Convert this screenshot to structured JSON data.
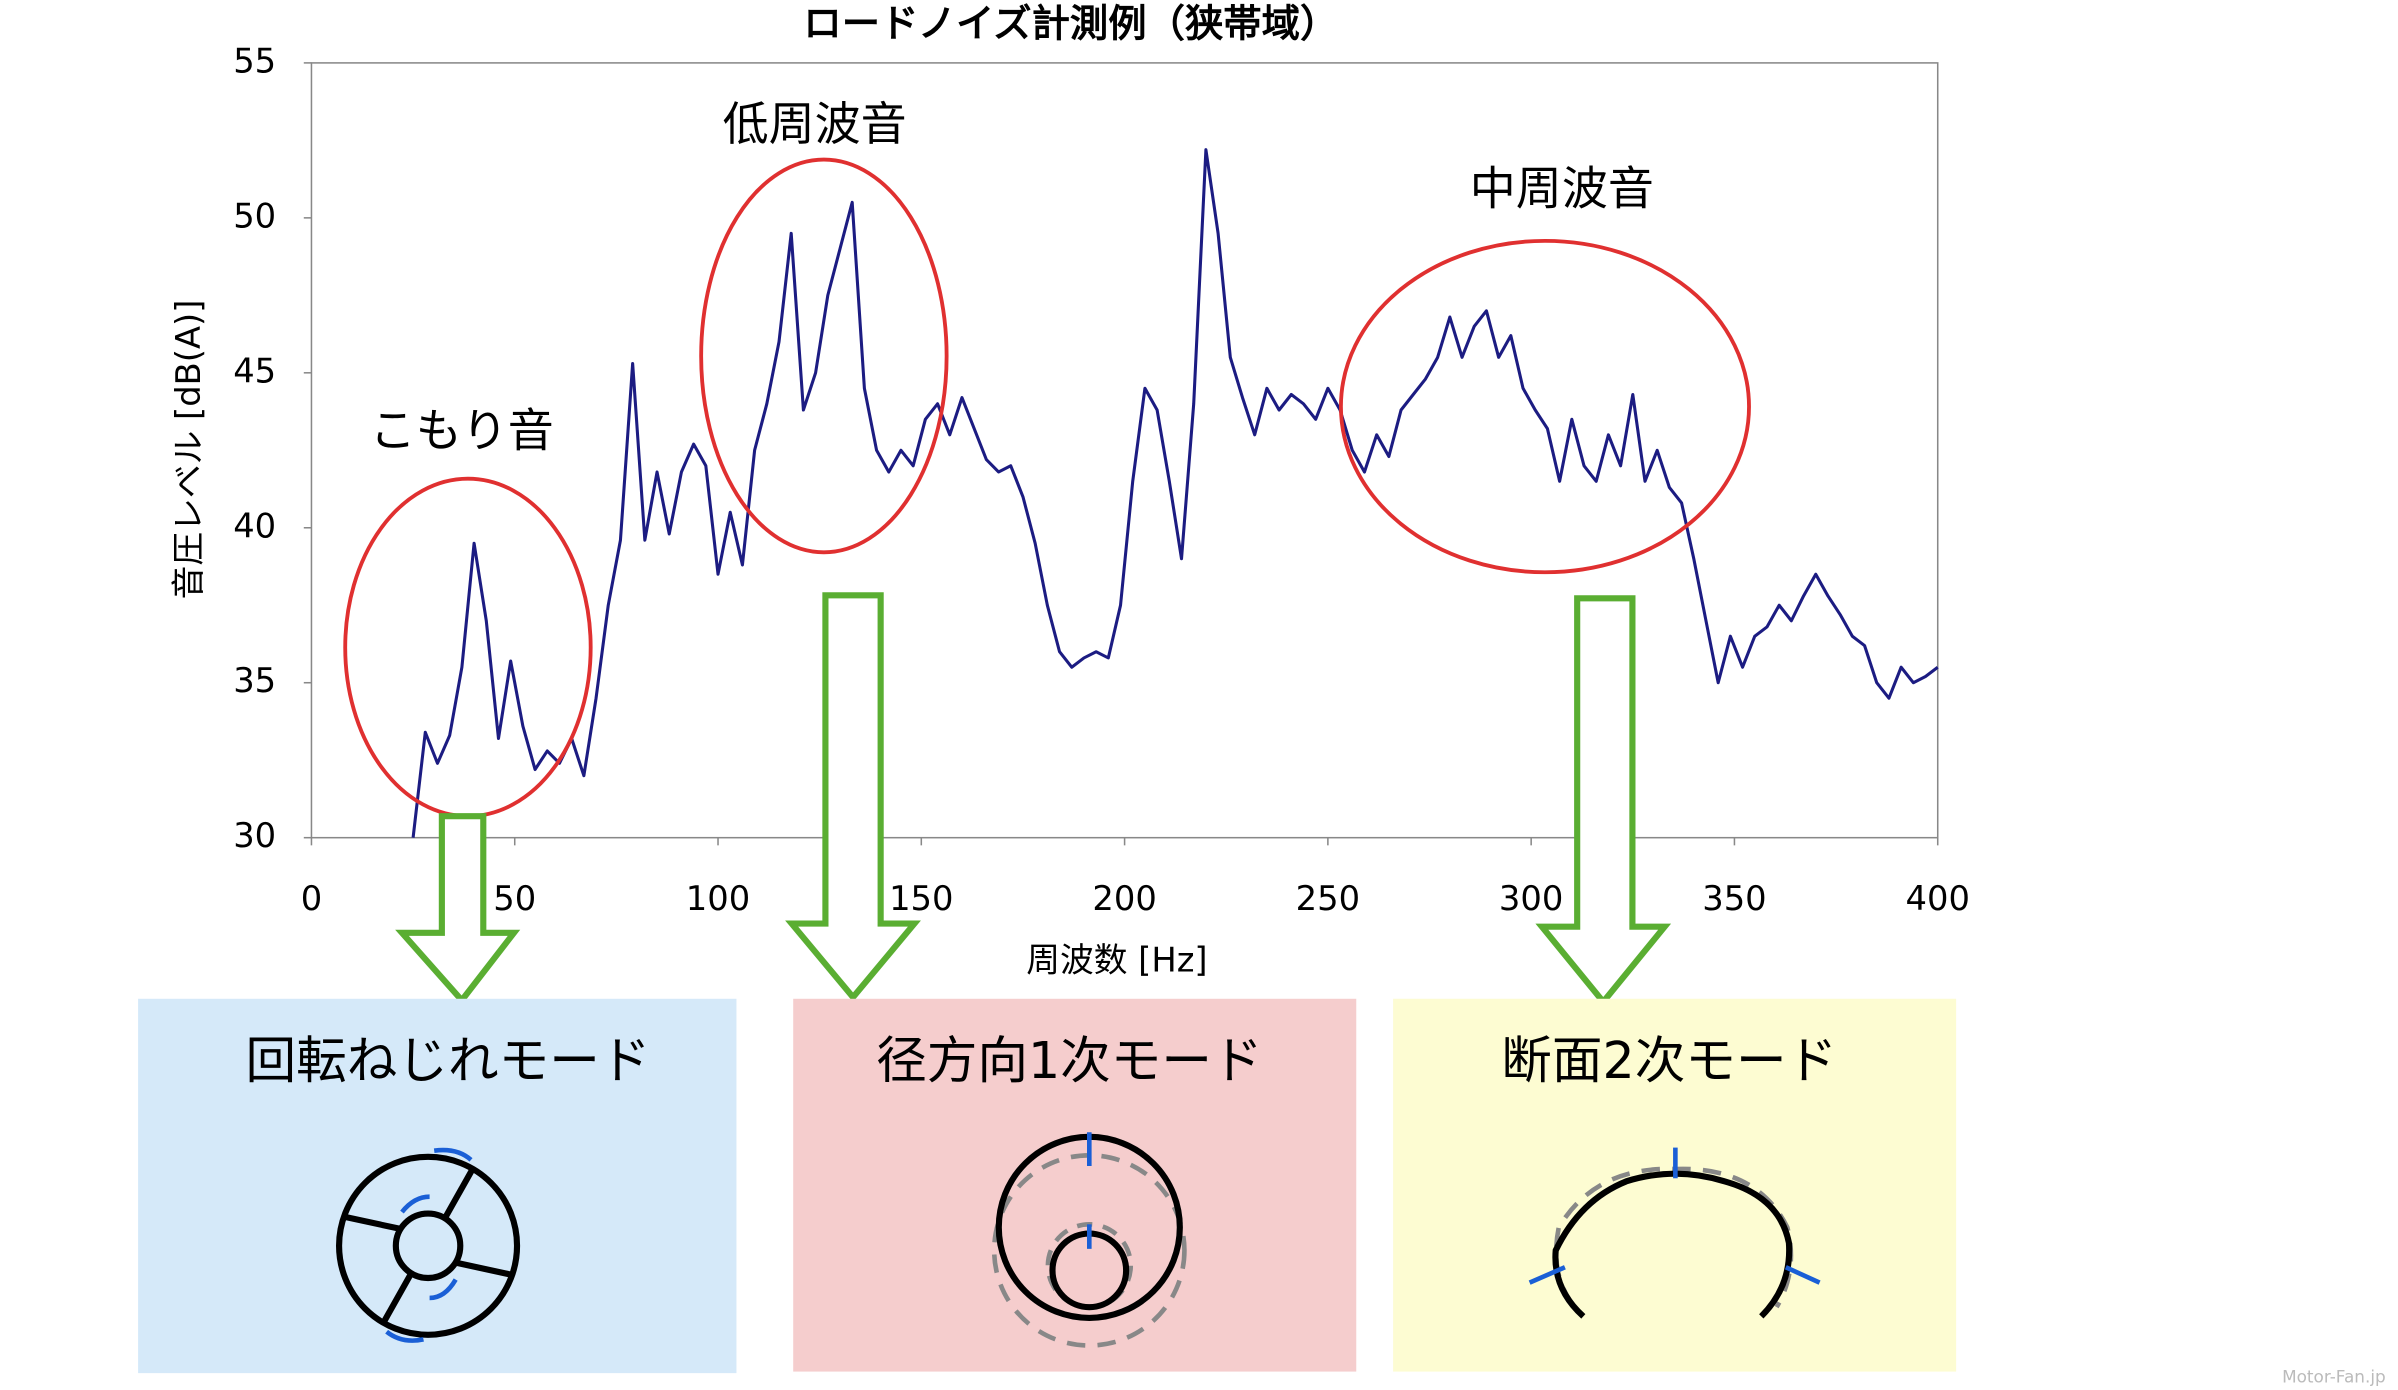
{
  "chart_data": {
    "type": "line",
    "title": "ロードノイズ計測例（狭帯域）",
    "x_label": "周波数 [Hz]",
    "y_label": "音圧レベル [dB(A)]",
    "color": "#1c1c82",
    "xlim": [
      0,
      400
    ],
    "xticks": [
      0,
      50,
      100,
      150,
      200,
      250,
      300,
      350,
      400
    ],
    "ylim": [
      30,
      55
    ],
    "yticks": [
      30,
      35,
      40,
      45,
      50,
      55
    ],
    "grid": false,
    "x": [
      25,
      28,
      31,
      34,
      37,
      40,
      43,
      46,
      49,
      52,
      55,
      58,
      61,
      64,
      67,
      70,
      73,
      76,
      79,
      82,
      85,
      88,
      91,
      94,
      97,
      100,
      103,
      106,
      109,
      112,
      115,
      118,
      121,
      124,
      127,
      130,
      133,
      136,
      139,
      142,
      145,
      148,
      151,
      154,
      157,
      160,
      163,
      166,
      169,
      172,
      175,
      178,
      181,
      184,
      187,
      190,
      193,
      196,
      199,
      202,
      205,
      208,
      211,
      214,
      217,
      220,
      223,
      226,
      229,
      232,
      235,
      238,
      241,
      244,
      247,
      250,
      253,
      256,
      259,
      262,
      265,
      268,
      271,
      274,
      277,
      280,
      283,
      286,
      289,
      292,
      295,
      298,
      301,
      304,
      307,
      310,
      313,
      316,
      319,
      322,
      325,
      328,
      331,
      334,
      337,
      340,
      343,
      346,
      349,
      352,
      355,
      358,
      361,
      364,
      367,
      370,
      373,
      376,
      379,
      382,
      385,
      388,
      391,
      394,
      397,
      400
    ],
    "values": [
      30.0,
      33.4,
      32.4,
      33.3,
      35.5,
      39.5,
      37.0,
      33.2,
      35.7,
      33.6,
      32.2,
      32.8,
      32.4,
      33.2,
      32.0,
      34.5,
      37.5,
      39.6,
      45.3,
      39.6,
      41.8,
      39.8,
      41.8,
      42.7,
      42.0,
      38.5,
      40.5,
      38.8,
      42.5,
      44.0,
      46.0,
      49.5,
      43.8,
      45.0,
      47.5,
      49.0,
      50.5,
      44.5,
      42.5,
      41.8,
      42.5,
      42.0,
      43.5,
      44.0,
      43.0,
      44.2,
      43.2,
      42.2,
      41.8,
      42.0,
      41.0,
      39.5,
      37.5,
      36.0,
      35.5,
      35.8,
      36.0,
      35.8,
      37.5,
      41.5,
      44.5,
      43.8,
      41.5,
      39.0,
      44.0,
      52.2,
      49.5,
      45.5,
      44.2,
      43.0,
      44.5,
      43.8,
      44.3,
      44.0,
      43.5,
      44.5,
      43.8,
      42.5,
      41.8,
      43.0,
      42.3,
      43.8,
      44.3,
      44.8,
      45.5,
      46.8,
      45.5,
      46.5,
      47.0,
      45.5,
      46.2,
      44.5,
      43.8,
      43.2,
      41.5,
      43.5,
      42.0,
      41.5,
      43.0,
      42.0,
      44.3,
      41.5,
      42.5,
      41.3,
      40.8,
      39.0,
      37.0,
      35.0,
      36.5,
      35.5,
      36.5,
      36.8,
      37.5,
      37.0,
      37.8,
      38.5,
      37.8,
      37.2,
      36.5,
      36.2,
      35.0,
      34.5,
      35.5,
      35.0,
      35.2,
      35.5
    ],
    "annotations": [
      "こもり音",
      "低周波音",
      "中周波音"
    ],
    "modes": [
      "回転ねじれモード",
      "径方向1次モード",
      "断面2次モード"
    ],
    "watermark": "Motor-Fan.jp"
  }
}
